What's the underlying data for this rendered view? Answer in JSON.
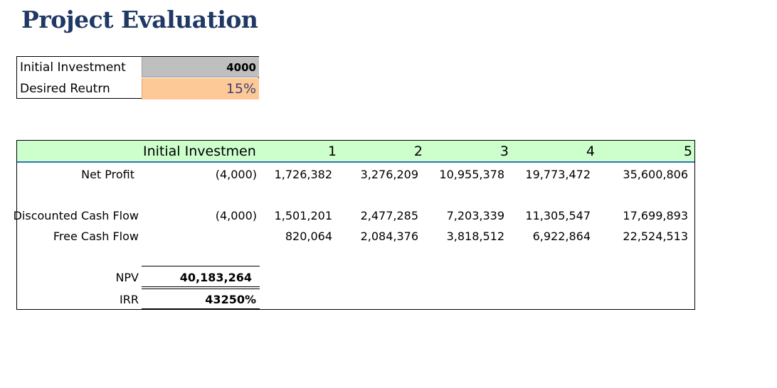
{
  "title": "Project Evaluation",
  "inputs": {
    "initial_investment_label": "Initial Investment",
    "initial_investment_value": "4000",
    "desired_return_label": "Desired Reutrn",
    "desired_return_value": "15%"
  },
  "table": {
    "headers": [
      "Initial Investmen",
      "1",
      "2",
      "3",
      "4",
      "5"
    ],
    "rows": {
      "net_profit": {
        "label": "Net Profit",
        "values": [
          "(4,000)",
          "1,726,382",
          "3,276,209",
          "10,955,378",
          "19,773,472",
          "35,600,806"
        ]
      },
      "discounted_cash_flow": {
        "label": "Discounted Cash Flow",
        "values": [
          "(4,000)",
          "1,501,201",
          "2,477,285",
          "7,203,339",
          "11,305,547",
          "17,699,893"
        ]
      },
      "free_cash_flow": {
        "label": "Free Cash Flow",
        "values": [
          "",
          "820,064",
          "2,084,376",
          "3,818,512",
          "6,922,864",
          "22,524,513"
        ]
      }
    },
    "npv": {
      "label": "NPV",
      "value": "40,183,264"
    },
    "irr": {
      "label": "IRR",
      "value": "43250%"
    }
  },
  "colors": {
    "title": "#1f3864",
    "header_bg": "#ccffcc",
    "header_border": "#2e75b6",
    "input_gray": "#bfbfbf",
    "input_orange": "#fdc996",
    "percent_text": "#3f3f76"
  }
}
